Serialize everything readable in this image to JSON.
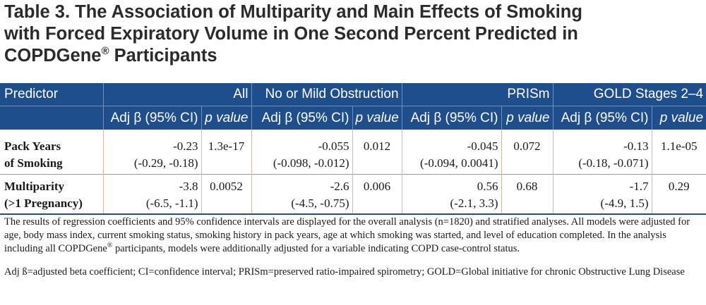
{
  "title": {
    "line1": "Table 3. The Association of Multiparity and Main Effects of Smoking",
    "line2": "with Forced Expiratory Volume in One Second Percent Predicted in",
    "line3_main": "COPDGene",
    "line3_sup": "®",
    "line3_rest": " Participants"
  },
  "table": {
    "predictor_header": "Predictor",
    "groups": [
      "All",
      "No or Mild Obstruction",
      "PRISm",
      "GOLD Stages 2–4"
    ],
    "sub_beta": "Adj β (95% CI)",
    "sub_p": "p value",
    "rows": [
      {
        "label_line1": "Pack Years",
        "label_line2": "of Smoking",
        "cells": [
          {
            "beta": "-0.23",
            "ci": "(-0.29, -0.18)",
            "p": "1.3e-17"
          },
          {
            "beta": "-0.055",
            "ci": "(-0.098, -0.012)",
            "p": "0.012"
          },
          {
            "beta": "-0.045",
            "ci": "(-0.094, 0.0041)",
            "p": "0.072"
          },
          {
            "beta": "-0.13",
            "ci": "(-0.18, -0.071)",
            "p": "1.1e-05"
          }
        ]
      },
      {
        "label_line1": "Multiparity",
        "label_line2": "(>1 Pregnancy)",
        "cells": [
          {
            "beta": "-3.8",
            "ci": "(-6.5, -1.1)",
            "p": "0.0052"
          },
          {
            "beta": "-2.6",
            "ci": "(-4.5, -0.75)",
            "p": "0.006"
          },
          {
            "beta": "0.56",
            "ci": "(-2.1, 3.3)",
            "p": "0.68"
          },
          {
            "beta": "-1.7",
            "ci": "(-4.9, 1.5)",
            "p": "0.29"
          }
        ]
      }
    ]
  },
  "notes": {
    "p1_a": "The results of regression coefficients and 95% confidence intervals are displayed for the overall analysis (n=1820) and stratified analyses. All models were adjusted for age, body mass index, current smoking status, smoking history in pack years, age at which smoking was started, and level of education completed.  In the analysis including all COPDGene",
    "p1_sup": "®",
    "p1_b": " participants, models were additionally adjusted for a variable indicating COPD case-control status.",
    "p2": "Adj ß=adjusted beta coefficient; CI=confidence interval; PRISm=preserved ratio-impaired spirometry; GOLD=Global initiative for chronic Obstructive Lung Disease"
  },
  "colors": {
    "header_bg": "#1f4e8c",
    "row_divider": "#e6823a"
  }
}
